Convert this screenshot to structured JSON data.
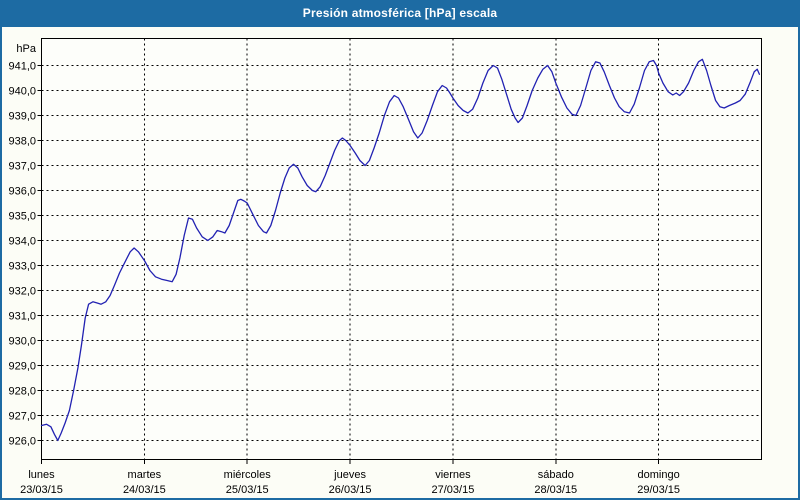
{
  "window": {
    "title": "Presión atmosférica [hPa] escala"
  },
  "colors": {
    "frame_blue": "#1d6ba3",
    "background": "#fcfdf6",
    "plot_background": "#fdfefa",
    "grid_black": "#000000",
    "line_blue": "#2222b2",
    "title_text": "#ffffff"
  },
  "chart_data": {
    "type": "line",
    "title": "Presión atmosférica [hPa] escala",
    "ylabel": "hPa",
    "grid": "dashed",
    "legend_position": "none",
    "y_axis": {
      "min": 926,
      "max": 941,
      "step": 1,
      "tick_labels": [
        "941,0",
        "940,0",
        "939,0",
        "938,0",
        "937,0",
        "936,0",
        "935,0",
        "934,0",
        "933,0",
        "932,0",
        "931,0",
        "930,0",
        "929,0",
        "928,0",
        "927,0",
        "926,0"
      ],
      "tick_values": [
        941,
        940,
        939,
        938,
        937,
        936,
        935,
        934,
        933,
        932,
        931,
        930,
        929,
        928,
        927,
        926
      ]
    },
    "x_axis": {
      "unit": "hours_from_monday_00h",
      "range": [
        0,
        168
      ],
      "day_ticks": [
        {
          "hour": 0,
          "name": "lunes",
          "date": "23/03/15"
        },
        {
          "hour": 24,
          "name": "martes",
          "date": "24/03/15"
        },
        {
          "hour": 48,
          "name": "miércoles",
          "date": "25/03/15"
        },
        {
          "hour": 72,
          "name": "jueves",
          "date": "26/03/15"
        },
        {
          "hour": 96,
          "name": "viernes",
          "date": "27/03/15"
        },
        {
          "hour": 120,
          "name": "sábado",
          "date": "28/03/15"
        },
        {
          "hour": 144,
          "name": "domingo",
          "date": "29/03/15"
        }
      ]
    },
    "series": [
      {
        "name": "presión atmosférica",
        "color": "#2222b2",
        "points": [
          [
            0,
            926.6
          ],
          [
            1.2,
            926.65
          ],
          [
            2.2,
            926.55
          ],
          [
            3,
            926.25
          ],
          [
            3.8,
            926.0
          ],
          [
            4.6,
            926.3
          ],
          [
            5.5,
            926.7
          ],
          [
            6.5,
            927.2
          ],
          [
            7.5,
            928.0
          ],
          [
            8.5,
            928.9
          ],
          [
            9.3,
            929.8
          ],
          [
            10.2,
            930.9
          ],
          [
            11,
            931.45
          ],
          [
            12,
            931.55
          ],
          [
            13,
            931.5
          ],
          [
            13.9,
            931.45
          ],
          [
            15,
            931.55
          ],
          [
            16,
            931.8
          ],
          [
            17,
            932.2
          ],
          [
            18.2,
            932.7
          ],
          [
            19.5,
            933.15
          ],
          [
            20.7,
            933.55
          ],
          [
            21.6,
            933.7
          ],
          [
            22.6,
            933.55
          ],
          [
            24,
            933.2
          ],
          [
            25.3,
            932.8
          ],
          [
            26.6,
            932.55
          ],
          [
            28,
            932.45
          ],
          [
            29.3,
            932.4
          ],
          [
            30.5,
            932.35
          ],
          [
            31.4,
            932.65
          ],
          [
            32.3,
            933.3
          ],
          [
            33.3,
            934.2
          ],
          [
            34.3,
            934.9
          ],
          [
            35.2,
            934.85
          ],
          [
            36.2,
            934.5
          ],
          [
            37.5,
            934.15
          ],
          [
            38.8,
            934.0
          ],
          [
            40,
            934.15
          ],
          [
            41,
            934.4
          ],
          [
            42,
            934.35
          ],
          [
            42.8,
            934.3
          ],
          [
            43.8,
            934.6
          ],
          [
            44.8,
            935.1
          ],
          [
            45.8,
            935.6
          ],
          [
            46.5,
            935.65
          ],
          [
            47.3,
            935.58
          ],
          [
            48,
            935.5
          ],
          [
            49.3,
            935.05
          ],
          [
            50.6,
            934.6
          ],
          [
            51.8,
            934.35
          ],
          [
            52.5,
            934.3
          ],
          [
            53.5,
            934.6
          ],
          [
            54.6,
            935.2
          ],
          [
            55.7,
            935.9
          ],
          [
            56.8,
            936.5
          ],
          [
            57.8,
            936.9
          ],
          [
            58.8,
            937.05
          ],
          [
            59.8,
            936.9
          ],
          [
            60.8,
            936.55
          ],
          [
            62,
            936.2
          ],
          [
            63.2,
            936.0
          ],
          [
            64,
            935.95
          ],
          [
            65,
            936.15
          ],
          [
            66.2,
            936.6
          ],
          [
            67.3,
            937.1
          ],
          [
            68.4,
            937.6
          ],
          [
            69.5,
            938.0
          ],
          [
            70.2,
            938.1
          ],
          [
            71,
            938.0
          ],
          [
            72,
            937.8
          ],
          [
            73.2,
            937.5
          ],
          [
            74.3,
            937.2
          ],
          [
            75.5,
            937.0
          ],
          [
            76.5,
            937.2
          ],
          [
            77.6,
            937.7
          ],
          [
            78.8,
            938.3
          ],
          [
            80,
            939.0
          ],
          [
            81.2,
            939.55
          ],
          [
            82.3,
            939.8
          ],
          [
            83.3,
            939.7
          ],
          [
            84.4,
            939.35
          ],
          [
            85.6,
            938.85
          ],
          [
            86.8,
            938.35
          ],
          [
            87.8,
            938.1
          ],
          [
            88.8,
            938.3
          ],
          [
            90,
            938.8
          ],
          [
            91.2,
            939.4
          ],
          [
            92.4,
            939.95
          ],
          [
            93.5,
            940.2
          ],
          [
            94.5,
            940.1
          ],
          [
            95.3,
            939.9
          ],
          [
            96,
            939.7
          ],
          [
            97.2,
            939.4
          ],
          [
            98.4,
            939.2
          ],
          [
            99.5,
            939.1
          ],
          [
            100.6,
            939.25
          ],
          [
            101.8,
            939.7
          ],
          [
            103,
            940.3
          ],
          [
            104.2,
            940.8
          ],
          [
            105.4,
            941.0
          ],
          [
            106.4,
            940.9
          ],
          [
            107.4,
            940.45
          ],
          [
            108.5,
            939.85
          ],
          [
            109.6,
            939.25
          ],
          [
            110.5,
            938.9
          ],
          [
            111.2,
            938.72
          ],
          [
            112.2,
            938.9
          ],
          [
            113.3,
            939.4
          ],
          [
            114.5,
            940.0
          ],
          [
            115.8,
            940.5
          ],
          [
            117,
            940.85
          ],
          [
            118.1,
            941.0
          ],
          [
            119.1,
            940.75
          ],
          [
            120,
            940.3
          ],
          [
            121.3,
            939.75
          ],
          [
            122.6,
            939.3
          ],
          [
            123.8,
            939.05
          ],
          [
            124.7,
            939.0
          ],
          [
            125.8,
            939.4
          ],
          [
            127,
            940.1
          ],
          [
            128.2,
            940.8
          ],
          [
            129.3,
            941.15
          ],
          [
            130.3,
            941.1
          ],
          [
            131.3,
            940.75
          ],
          [
            132.5,
            940.2
          ],
          [
            133.7,
            939.7
          ],
          [
            134.8,
            939.35
          ],
          [
            136,
            939.15
          ],
          [
            137.2,
            939.1
          ],
          [
            138.3,
            939.45
          ],
          [
            139.5,
            940.1
          ],
          [
            140.7,
            940.8
          ],
          [
            141.8,
            941.15
          ],
          [
            142.8,
            941.2
          ],
          [
            143.5,
            941.0
          ],
          [
            144,
            940.7
          ],
          [
            145,
            940.3
          ],
          [
            146.2,
            939.95
          ],
          [
            147.3,
            939.82
          ],
          [
            148.1,
            939.9
          ],
          [
            148.9,
            939.8
          ],
          [
            149.8,
            939.95
          ],
          [
            151,
            940.3
          ],
          [
            152.2,
            940.8
          ],
          [
            153.3,
            941.15
          ],
          [
            154.2,
            941.25
          ],
          [
            155.2,
            940.8
          ],
          [
            156.2,
            940.2
          ],
          [
            157.3,
            939.6
          ],
          [
            158.3,
            939.35
          ],
          [
            159.3,
            939.3
          ],
          [
            160.5,
            939.4
          ],
          [
            161.9,
            939.5
          ],
          [
            163,
            939.6
          ],
          [
            164.2,
            939.85
          ],
          [
            165.4,
            940.35
          ],
          [
            166.3,
            940.75
          ],
          [
            167,
            940.85
          ],
          [
            167.5,
            940.65
          ]
        ]
      }
    ]
  }
}
